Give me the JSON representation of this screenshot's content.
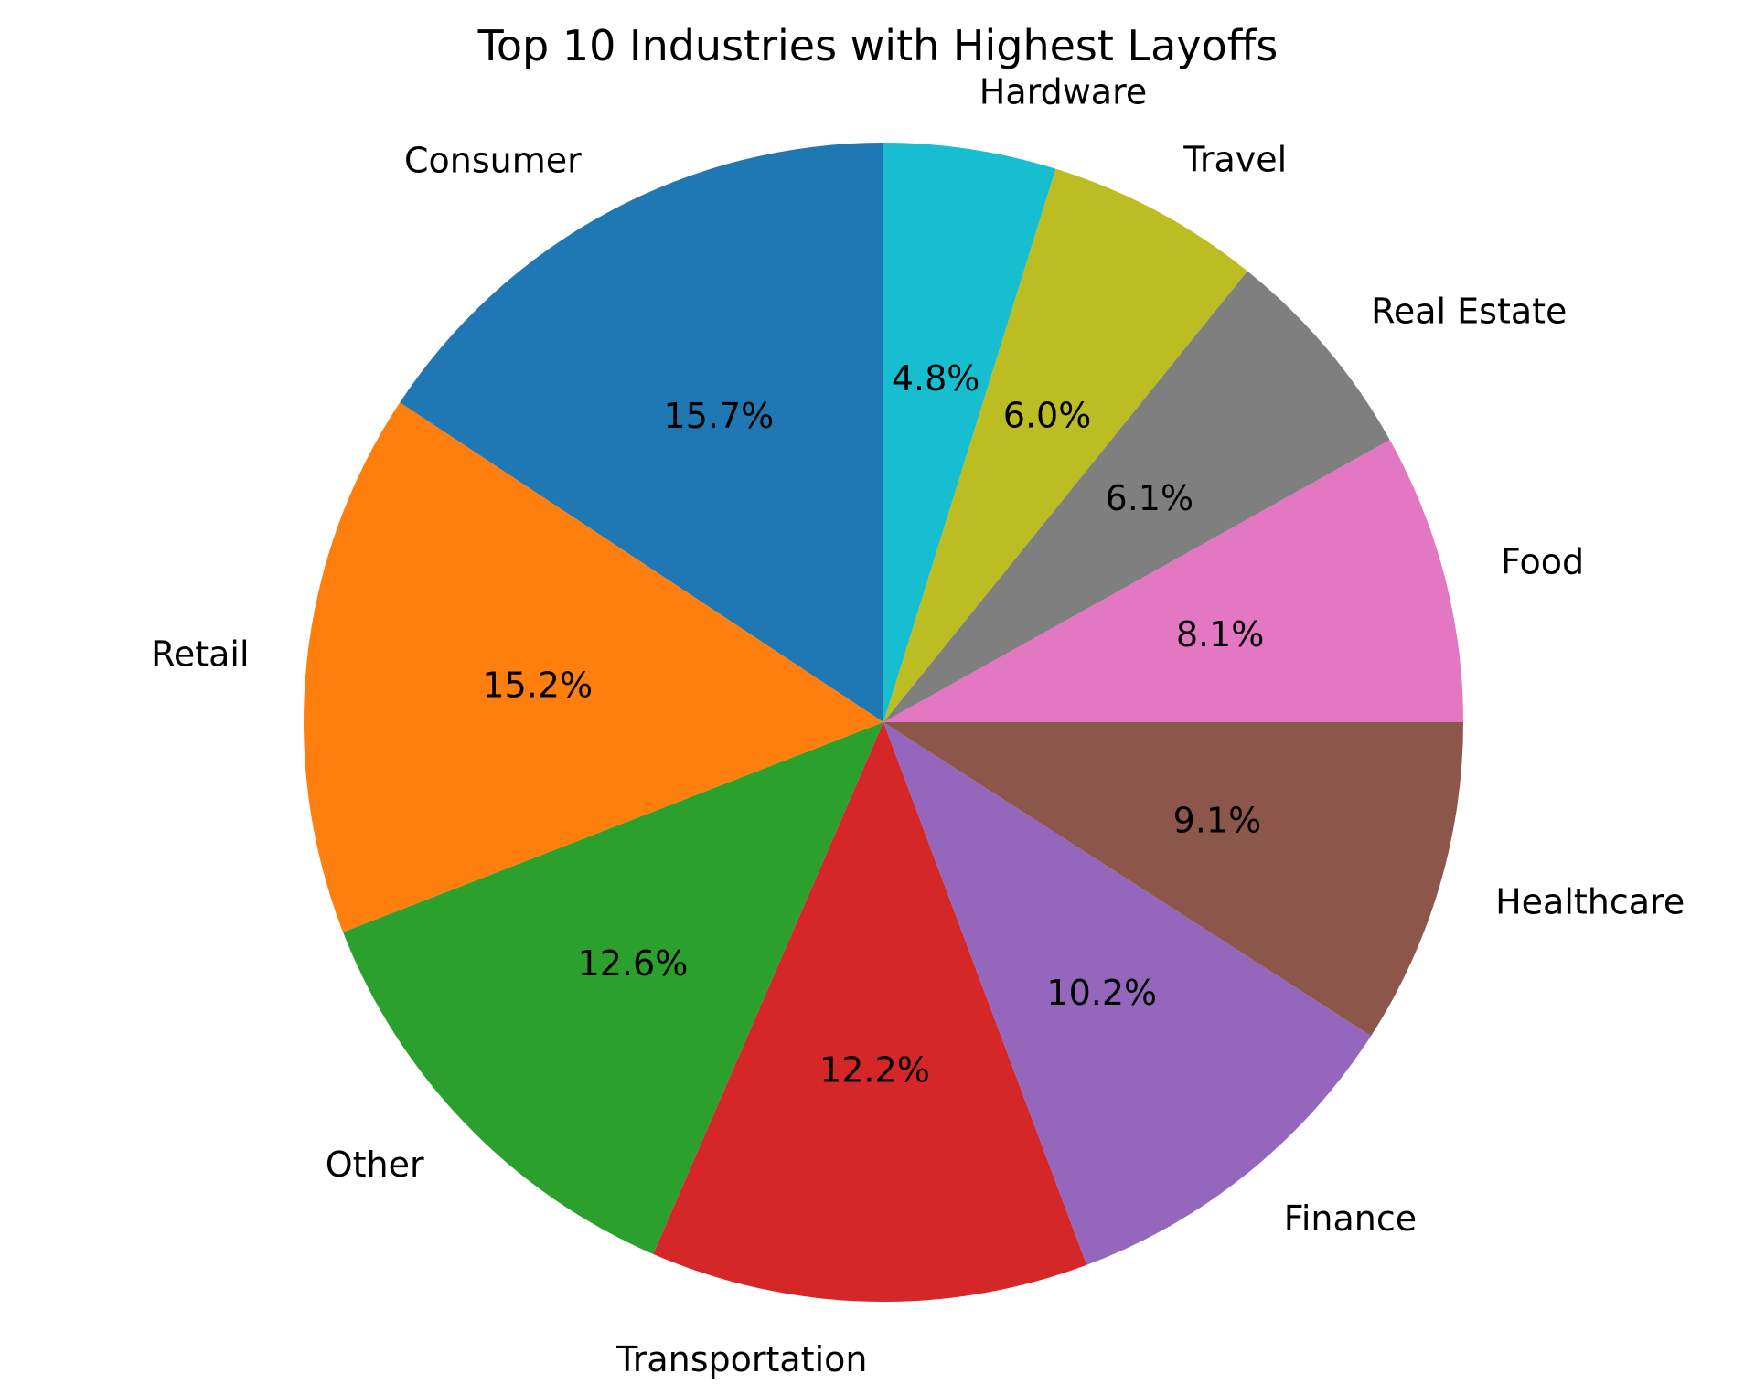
{
  "chart_data": {
    "type": "pie",
    "title": "Top 10 Industries with Highest Layoffs",
    "start_angle_deg": 90,
    "direction": "counterclockwise",
    "slices": [
      {
        "label": "Consumer",
        "value": 15.7,
        "pct_label": "15.7%",
        "color": "#1f77b4"
      },
      {
        "label": "Retail",
        "value": 15.2,
        "pct_label": "15.2%",
        "color": "#ff7f0e"
      },
      {
        "label": "Other",
        "value": 12.6,
        "pct_label": "12.6%",
        "color": "#2ca02c"
      },
      {
        "label": "Transportation",
        "value": 12.2,
        "pct_label": "12.2%",
        "color": "#d62728"
      },
      {
        "label": "Finance",
        "value": 10.2,
        "pct_label": "10.2%",
        "color": "#9467bd"
      },
      {
        "label": "Healthcare",
        "value": 9.1,
        "pct_label": "9.1%",
        "color": "#8c564b"
      },
      {
        "label": "Food",
        "value": 8.1,
        "pct_label": "8.1%",
        "color": "#e377c2"
      },
      {
        "label": "Real Estate",
        "value": 6.1,
        "pct_label": "6.1%",
        "color": "#7f7f7f"
      },
      {
        "label": "Travel",
        "value": 6.0,
        "pct_label": "6.0%",
        "color": "#bcbd22"
      },
      {
        "label": "Hardware",
        "value": 4.8,
        "pct_label": "4.8%",
        "color": "#17becf"
      }
    ]
  }
}
